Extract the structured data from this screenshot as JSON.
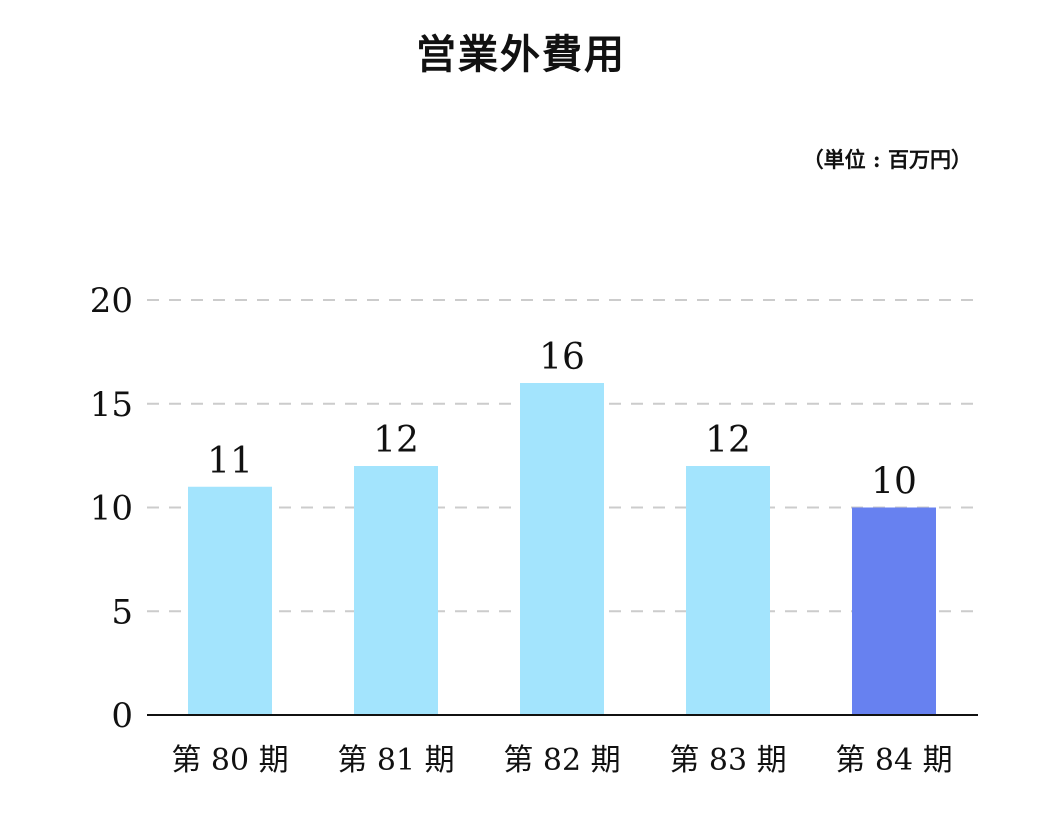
{
  "chart_data": {
    "type": "bar",
    "title": "営業外費用",
    "unit": "（単位 : 百万円）",
    "categories": [
      "第 80 期",
      "第 81 期",
      "第 82 期",
      "第 83 期",
      "第 84 期"
    ],
    "values": [
      11,
      12,
      16,
      12,
      10
    ],
    "data_labels": [
      "11",
      "12",
      "16",
      "12",
      "10"
    ],
    "ylim": [
      0,
      20
    ],
    "yticks": [
      0,
      5,
      10,
      15,
      20
    ],
    "ytick_labels": [
      "0",
      "5",
      "10",
      "15",
      "20"
    ],
    "xlabel": "",
    "ylabel": "",
    "grid": true,
    "colors": {
      "bar": "#a3e4fd",
      "highlight_bar": "#6781f0",
      "grid": "#cccccc",
      "axis": "#111111"
    },
    "highlight_index": 4
  }
}
